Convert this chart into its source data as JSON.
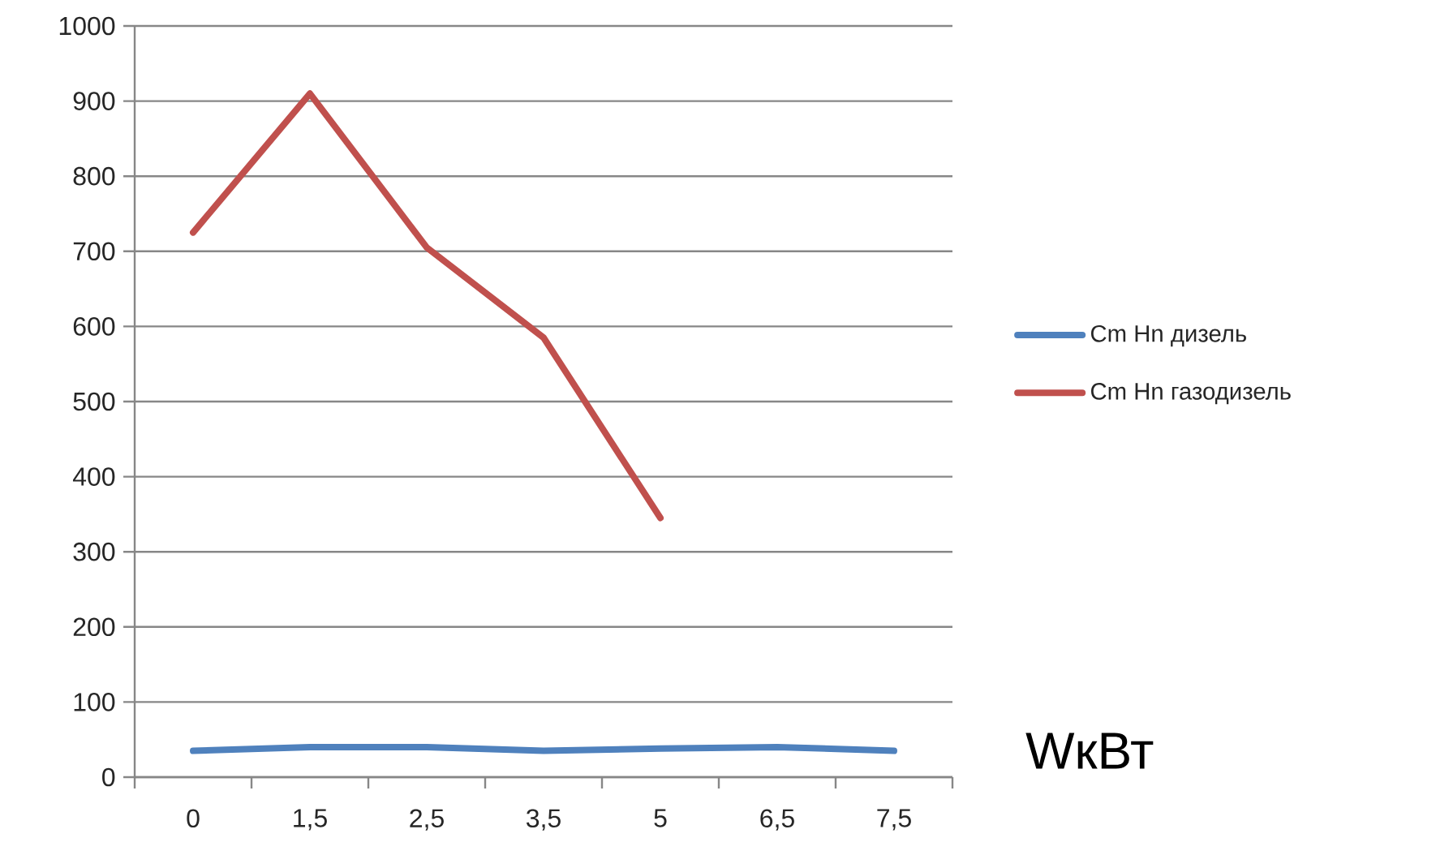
{
  "chart_data": {
    "type": "line",
    "xlabel": "WкВт",
    "categories": [
      "0",
      "1,5",
      "2,5",
      "3,5",
      "5",
      "6,5",
      "7,5"
    ],
    "series": [
      {
        "name": "Cm Hn дизель",
        "color": "#4f81bd",
        "values": [
          35,
          40,
          40,
          35,
          38,
          40,
          35
        ]
      },
      {
        "name": "Cm Hn газодизель",
        "color": "#c0504d",
        "values": [
          725,
          910,
          705,
          585,
          345,
          null,
          null
        ]
      }
    ],
    "ylim": [
      0,
      1000
    ],
    "yticks": [
      0,
      100,
      200,
      300,
      400,
      500,
      600,
      700,
      800,
      900,
      1000
    ],
    "grid": "y",
    "legend": "right",
    "marker": "none",
    "line_style": "solid"
  }
}
